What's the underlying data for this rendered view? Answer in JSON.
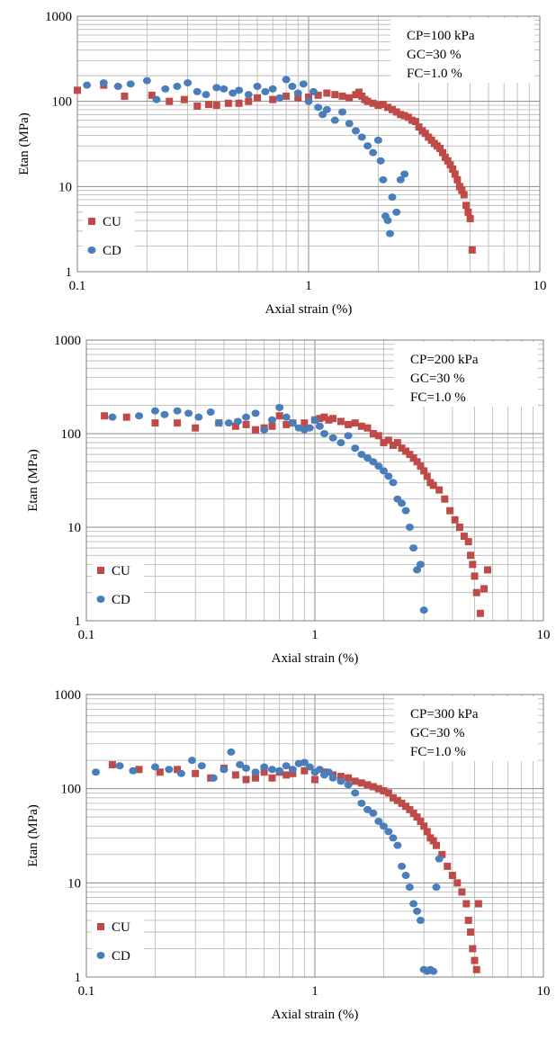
{
  "colors": {
    "CU": "#be4b48",
    "CD": "#4a7ebb"
  },
  "chart_data": [
    {
      "type": "scatter",
      "title": "",
      "xlabel": "Axial strain (%)",
      "ylabel": "Etan (MPa)",
      "x_scale": "log",
      "y_scale": "log",
      "xlim": [
        0.1,
        10
      ],
      "ylim": [
        1,
        1000
      ],
      "x_tick_labels": [
        "0.1",
        "1",
        "10"
      ],
      "y_tick_labels": [
        "1",
        "10",
        "100",
        "1000"
      ],
      "grid": true,
      "legend_position": "bottom-left",
      "annotation": [
        "CP=100 kPa",
        "GC=30 %",
        "FC=1.0 %"
      ],
      "series": [
        {
          "name": "CU",
          "marker": "square",
          "x": [
            0.1,
            0.13,
            0.16,
            0.21,
            0.25,
            0.29,
            0.33,
            0.37,
            0.4,
            0.45,
            0.5,
            0.55,
            0.6,
            0.7,
            0.8,
            0.9,
            1.0,
            1.1,
            1.2,
            1.3,
            1.4,
            1.5,
            1.6,
            1.65,
            1.7,
            1.75,
            1.8,
            1.9,
            2.0,
            2.1,
            2.2,
            2.3,
            2.4,
            2.5,
            2.6,
            2.7,
            2.8,
            2.9,
            3.0,
            3.1,
            3.2,
            3.3,
            3.4,
            3.5,
            3.6,
            3.7,
            3.8,
            3.9,
            4.0,
            4.1,
            4.2,
            4.3,
            4.4,
            4.5,
            4.6,
            4.7,
            4.8,
            4.9,
            5.0,
            5.1
          ],
          "y": [
            135,
            155,
            115,
            118,
            100,
            105,
            88,
            92,
            90,
            95,
            95,
            100,
            110,
            105,
            115,
            110,
            112,
            118,
            125,
            120,
            115,
            110,
            120,
            128,
            115,
            105,
            100,
            95,
            90,
            92,
            85,
            80,
            75,
            70,
            68,
            65,
            60,
            58,
            50,
            45,
            42,
            38,
            35,
            32,
            30,
            28,
            25,
            22,
            20,
            18,
            16,
            14,
            12,
            10,
            9,
            8,
            6,
            5,
            4.2,
            1.8
          ]
        },
        {
          "name": "CD",
          "marker": "circle",
          "x": [
            0.11,
            0.13,
            0.15,
            0.17,
            0.2,
            0.22,
            0.24,
            0.27,
            0.3,
            0.33,
            0.36,
            0.4,
            0.43,
            0.47,
            0.5,
            0.55,
            0.6,
            0.65,
            0.7,
            0.75,
            0.8,
            0.85,
            0.9,
            0.95,
            1.0,
            1.05,
            1.1,
            1.15,
            1.2,
            1.3,
            1.4,
            1.5,
            1.6,
            1.7,
            1.8,
            1.9,
            2.0,
            2.05,
            2.1,
            2.15,
            2.2,
            2.25,
            2.3,
            2.4,
            2.5,
            2.6
          ],
          "y": [
            155,
            165,
            150,
            160,
            175,
            105,
            140,
            150,
            165,
            130,
            120,
            145,
            140,
            125,
            135,
            120,
            150,
            130,
            140,
            110,
            180,
            150,
            125,
            160,
            100,
            130,
            85,
            70,
            80,
            60,
            75,
            55,
            45,
            38,
            30,
            25,
            35,
            20,
            12,
            4.5,
            4.0,
            2.8,
            7.5,
            5.0,
            12,
            14
          ]
        }
      ]
    },
    {
      "type": "scatter",
      "title": "",
      "xlabel": "Axial strain (%)",
      "ylabel": "Etan (MPa)",
      "x_scale": "log",
      "y_scale": "log",
      "xlim": [
        0.1,
        10
      ],
      "ylim": [
        1,
        1000
      ],
      "x_tick_labels": [
        "0.1",
        "1",
        "10"
      ],
      "y_tick_labels": [
        "1",
        "10",
        "100",
        "1000"
      ],
      "grid": true,
      "legend_position": "bottom-left",
      "annotation": [
        "CP=200 kPa",
        "GC=30 %",
        "FC=1.0 %"
      ],
      "series": [
        {
          "name": "CU",
          "marker": "square",
          "x": [
            0.12,
            0.15,
            0.2,
            0.25,
            0.3,
            0.38,
            0.45,
            0.5,
            0.55,
            0.6,
            0.65,
            0.7,
            0.75,
            0.8,
            0.9,
            1.0,
            1.05,
            1.1,
            1.15,
            1.2,
            1.3,
            1.4,
            1.5,
            1.6,
            1.7,
            1.8,
            1.9,
            2.0,
            2.1,
            2.2,
            2.3,
            2.4,
            2.5,
            2.6,
            2.7,
            2.8,
            2.9,
            3.0,
            3.1,
            3.2,
            3.3,
            3.5,
            3.7,
            3.9,
            4.1,
            4.3,
            4.5,
            4.7,
            4.8,
            4.9,
            5.0,
            5.1,
            5.3,
            5.5,
            5.7
          ],
          "y": [
            155,
            150,
            130,
            130,
            115,
            130,
            120,
            125,
            110,
            115,
            120,
            155,
            125,
            130,
            130,
            140,
            145,
            150,
            140,
            145,
            135,
            125,
            130,
            120,
            115,
            100,
            95,
            80,
            85,
            75,
            80,
            70,
            65,
            60,
            55,
            50,
            45,
            40,
            35,
            30,
            28,
            25,
            20,
            15,
            12,
            10,
            8,
            7,
            5,
            4,
            3,
            2,
            1.2,
            2.2,
            3.5
          ]
        },
        {
          "name": "CD",
          "marker": "circle",
          "x": [
            0.13,
            0.17,
            0.2,
            0.22,
            0.25,
            0.28,
            0.31,
            0.35,
            0.38,
            0.42,
            0.46,
            0.5,
            0.55,
            0.6,
            0.65,
            0.7,
            0.75,
            0.8,
            0.85,
            0.9,
            0.95,
            1.0,
            1.05,
            1.1,
            1.2,
            1.3,
            1.4,
            1.5,
            1.6,
            1.7,
            1.8,
            1.9,
            2.0,
            2.1,
            2.2,
            2.3,
            2.4,
            2.5,
            2.6,
            2.7,
            2.8,
            2.9,
            3.0
          ],
          "y": [
            150,
            155,
            175,
            160,
            175,
            165,
            150,
            170,
            130,
            130,
            135,
            150,
            165,
            110,
            140,
            190,
            150,
            130,
            115,
            110,
            115,
            140,
            120,
            100,
            90,
            80,
            95,
            70,
            60,
            55,
            50,
            45,
            40,
            35,
            30,
            20,
            18,
            15,
            10,
            6,
            3.5,
            4.0,
            1.3
          ]
        }
      ]
    },
    {
      "type": "scatter",
      "title": "",
      "xlabel": "Axial strain (%)",
      "ylabel": "Etan (MPa)",
      "x_scale": "log",
      "y_scale": "log",
      "xlim": [
        0.1,
        10
      ],
      "ylim": [
        1,
        1000
      ],
      "x_tick_labels": [
        "0.1",
        "1",
        "10"
      ],
      "y_tick_labels": [
        "1",
        "10",
        "100",
        "1000"
      ],
      "grid": true,
      "legend_position": "bottom-left",
      "annotation": [
        "CP=300 kPa",
        "GC=30 %",
        "FC=1.0 %"
      ],
      "series": [
        {
          "name": "CU",
          "marker": "square",
          "x": [
            0.13,
            0.17,
            0.21,
            0.25,
            0.3,
            0.35,
            0.4,
            0.45,
            0.5,
            0.55,
            0.6,
            0.65,
            0.7,
            0.75,
            0.8,
            0.9,
            1.0,
            1.1,
            1.2,
            1.3,
            1.4,
            1.5,
            1.6,
            1.7,
            1.8,
            1.9,
            2.0,
            2.1,
            2.2,
            2.3,
            2.4,
            2.5,
            2.6,
            2.7,
            2.8,
            2.9,
            3.0,
            3.1,
            3.2,
            3.3,
            3.4,
            3.6,
            3.8,
            4.0,
            4.2,
            4.4,
            4.6,
            4.7,
            4.8,
            4.9,
            5.0,
            5.1,
            5.2
          ],
          "y": [
            180,
            160,
            150,
            160,
            145,
            130,
            165,
            140,
            125,
            130,
            150,
            130,
            150,
            140,
            145,
            155,
            125,
            150,
            140,
            135,
            130,
            120,
            115,
            110,
            105,
            100,
            95,
            90,
            80,
            75,
            70,
            65,
            60,
            55,
            50,
            45,
            40,
            35,
            30,
            28,
            25,
            20,
            15,
            12,
            10,
            8,
            6,
            4,
            3,
            2,
            1.5,
            1.2,
            6.0
          ]
        },
        {
          "name": "CD",
          "marker": "circle",
          "x": [
            0.11,
            0.14,
            0.16,
            0.2,
            0.23,
            0.26,
            0.29,
            0.32,
            0.36,
            0.4,
            0.43,
            0.47,
            0.5,
            0.55,
            0.6,
            0.65,
            0.7,
            0.75,
            0.8,
            0.85,
            0.9,
            0.95,
            1.0,
            1.05,
            1.1,
            1.15,
            1.2,
            1.3,
            1.4,
            1.5,
            1.6,
            1.7,
            1.8,
            1.9,
            2.0,
            2.1,
            2.2,
            2.3,
            2.4,
            2.5,
            2.6,
            2.7,
            2.8,
            2.9,
            3.0,
            3.1,
            3.2,
            3.3,
            3.4,
            3.5
          ],
          "y": [
            150,
            175,
            155,
            170,
            160,
            145,
            200,
            175,
            130,
            160,
            245,
            180,
            165,
            150,
            170,
            160,
            155,
            175,
            160,
            185,
            190,
            170,
            150,
            160,
            140,
            150,
            130,
            120,
            110,
            90,
            70,
            60,
            55,
            45,
            40,
            35,
            30,
            25,
            15,
            12,
            9,
            6,
            5,
            4,
            1.2,
            1.15,
            1.2,
            1.15,
            9,
            18
          ]
        }
      ]
    }
  ]
}
